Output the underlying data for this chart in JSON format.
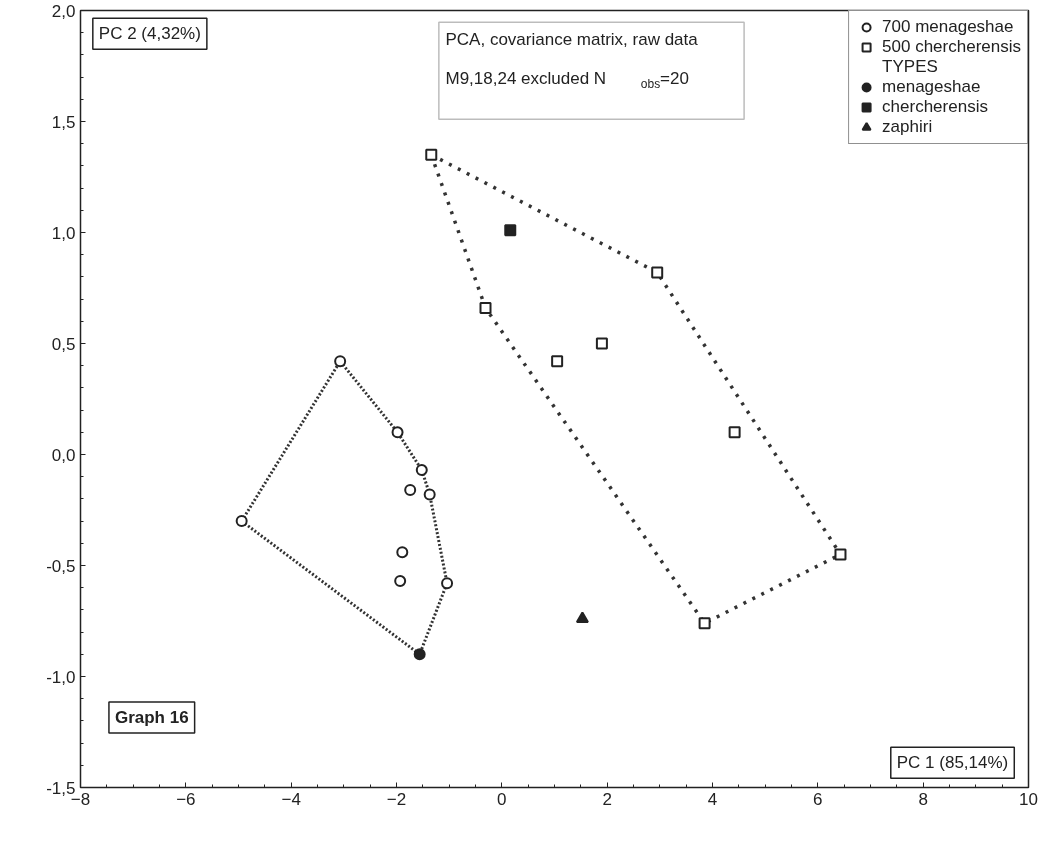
{
  "chart_data": {
    "type": "scatter",
    "xlabel": "PC 1 (85,14%)",
    "ylabel": "PC 2 (4,32%)",
    "annotations": [
      "PCA, covariance matrix, raw data",
      "M9,18,24 excluded    N$_{obs}$=20",
      "Graph 16"
    ],
    "legend_title": "TYPES",
    "legend": "top right",
    "grid": false,
    "xlim": [
      -8,
      10
    ],
    "xticks": [
      -8,
      -6,
      -4,
      -2,
      0,
      2,
      4,
      6,
      8,
      10
    ],
    "ylim": [
      -1.5,
      2.0
    ],
    "yticks": [
      {
        "value": -1.5,
        "label": "-1,5"
      },
      {
        "value": -1.0,
        "label": "-1,0"
      },
      {
        "value": -0.5,
        "label": "-0,5"
      },
      {
        "value": 0.0,
        "label": "0,0"
      },
      {
        "value": 0.5,
        "label": "0,5"
      },
      {
        "value": 1.0,
        "label": "1,0"
      },
      {
        "value": 1.5,
        "label": "1,5"
      },
      {
        "value": 2.0,
        "label": "2,0"
      }
    ],
    "series": [
      {
        "type": "line",
        "line_style": "dotted",
        "color": "#333333",
        "x": [
          -4.94,
          -3.07,
          -1.98,
          -1.52,
          -1.37,
          -1.04
        ],
        "values": [
          -0.3,
          0.42,
          0.1,
          -0.07,
          -0.18,
          -0.58
        ]
      },
      {
        "type": "line",
        "line_style": "dotted",
        "color": "#333333",
        "x": [
          -4.94,
          -1.56,
          -1.04
        ],
        "values": [
          -0.3,
          -0.9,
          -0.58
        ]
      },
      {
        "type": "line",
        "line_style": "dashed",
        "color": "#333333",
        "x": [
          -1.34,
          2.95,
          6.43
        ],
        "values": [
          1.35,
          0.82,
          -0.45
        ]
      },
      {
        "type": "line",
        "line_style": "dashed",
        "color": "#333333",
        "x": [
          -1.34,
          -0.31,
          3.85,
          6.43
        ],
        "values": [
          1.35,
          0.66,
          -0.76,
          -0.45
        ]
      },
      {
        "name": "700 menageshae",
        "marker": "circle",
        "color": "#222222",
        "x": [
          -3.07,
          -1.98,
          -1.52,
          -1.74,
          -1.37,
          -4.94,
          -1.89,
          -1.93,
          -1.04
        ],
        "values": [
          0.42,
          0.1,
          -0.07,
          -0.16,
          -0.18,
          -0.3,
          -0.44,
          -0.57,
          -0.58
        ]
      },
      {
        "name": "500 chercherensis",
        "marker": "square",
        "color": "#222222",
        "x": [
          -1.34,
          2.95,
          -0.31,
          1.9,
          1.05,
          4.42,
          6.43,
          3.85
        ],
        "values": [
          1.35,
          0.82,
          0.66,
          0.5,
          0.42,
          0.1,
          -0.45,
          -0.76
        ]
      },
      {
        "name": "menageshae",
        "marker": "circle",
        "color": "#222222",
        "x": [
          -1.56
        ],
        "values": [
          -0.9
        ]
      },
      {
        "name": "chercherensis",
        "marker": "square",
        "color": "#222222",
        "x": [
          0.16
        ],
        "values": [
          1.01
        ]
      },
      {
        "name": "zaphiri",
        "marker": "triangle",
        "color": "#222222",
        "x": [
          1.53
        ],
        "values": [
          -0.74
        ]
      }
    ]
  }
}
